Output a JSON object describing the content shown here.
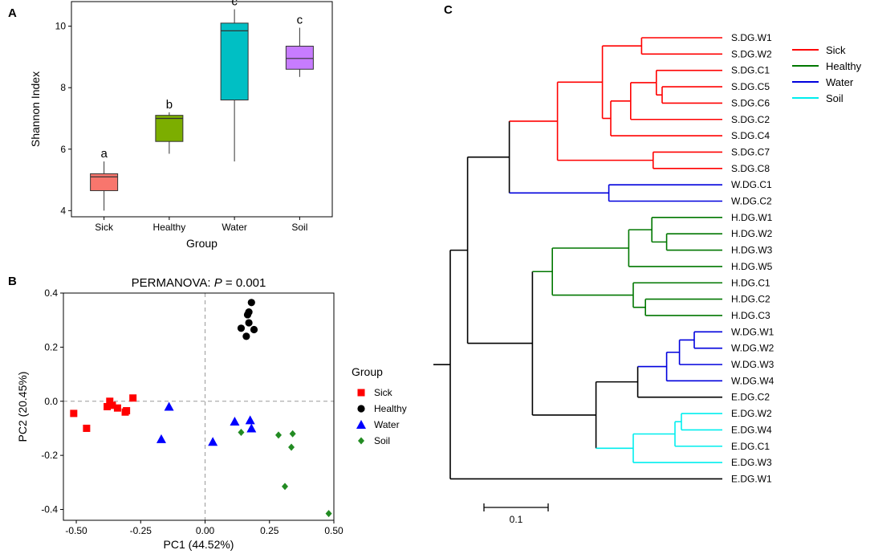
{
  "panels": {
    "a": {
      "letter": "A"
    },
    "b": {
      "letter": "B"
    },
    "c": {
      "letter": "C"
    }
  },
  "chart_data": [
    {
      "id": "A",
      "type": "boxplot",
      "title": "",
      "xlabel": "Group",
      "ylabel": "Shannon Index",
      "ylim": [
        3.8,
        10.8
      ],
      "yticks": [
        4,
        6,
        8,
        10
      ],
      "categories": [
        "Sick",
        "Healthy",
        "Water",
        "Soil"
      ],
      "boxes": [
        {
          "group": "Sick",
          "min": 4.0,
          "q1": 4.65,
          "median": 5.1,
          "q3": 5.2,
          "max": 5.6,
          "letter": "a",
          "color": "#f8766d"
        },
        {
          "group": "Healthy",
          "min": 5.85,
          "q1": 6.25,
          "median": 7.0,
          "q3": 7.1,
          "max": 7.2,
          "letter": "b",
          "color": "#7cae00"
        },
        {
          "group": "Water",
          "min": 5.6,
          "q1": 7.6,
          "median": 9.85,
          "q3": 10.1,
          "max": 10.55,
          "letter": "c",
          "color": "#00bfc4"
        },
        {
          "group": "Soil",
          "min": 8.35,
          "q1": 8.6,
          "median": 8.95,
          "q3": 9.35,
          "max": 9.95,
          "letter": "c",
          "color": "#c77cff"
        }
      ]
    },
    {
      "id": "B",
      "type": "scatter",
      "title_prefix": "PERMANOVA: ",
      "title_p": "P",
      "title_suffix": " = 0.001",
      "xlabel": "PC1 (44.52%)",
      "ylabel": "PC2 (20.45%)",
      "xlim": [
        -0.55,
        0.5
      ],
      "ylim": [
        -0.44,
        0.4
      ],
      "xticks": [
        -0.5,
        -0.25,
        0.0,
        0.25,
        0.5
      ],
      "xtick_labels": [
        "-0.50",
        "-0.25",
        "0.00",
        "0.25",
        "0.50"
      ],
      "yticks": [
        -0.4,
        -0.2,
        0.0,
        0.2,
        0.4
      ],
      "ytick_labels": [
        "-0.4",
        "-0.2",
        "0.0",
        "0.2",
        "0.4"
      ],
      "legend_title": "Group",
      "legend_position": "right",
      "series": [
        {
          "name": "Sick",
          "color": "#ff0000",
          "marker": "square",
          "x": [
            -0.51,
            -0.46,
            -0.38,
            -0.37,
            -0.36,
            -0.34,
            -0.31,
            -0.305,
            -0.28
          ],
          "y": [
            -0.045,
            -0.1,
            -0.02,
            0.0,
            -0.015,
            -0.025,
            -0.04,
            -0.035,
            0.012
          ]
        },
        {
          "name": "Healthy",
          "color": "#000000",
          "marker": "circle",
          "x": [
            0.14,
            0.16,
            0.165,
            0.17,
            0.17,
            0.18,
            0.19
          ],
          "y": [
            0.27,
            0.24,
            0.32,
            0.29,
            0.33,
            0.365,
            0.265
          ]
        },
        {
          "name": "Water",
          "color": "#0000ff",
          "marker": "triangle",
          "x": [
            -0.17,
            -0.14,
            0.03,
            0.115,
            0.175,
            0.18
          ],
          "y": [
            -0.14,
            -0.02,
            -0.15,
            -0.075,
            -0.07,
            -0.1
          ]
        },
        {
          "name": "Soil",
          "color": "#228b22",
          "marker": "diamond",
          "x": [
            0.14,
            0.285,
            0.31,
            0.335,
            0.34,
            0.48
          ],
          "y": [
            -0.115,
            -0.125,
            -0.315,
            -0.17,
            -0.12,
            -0.415
          ]
        }
      ]
    },
    {
      "id": "C",
      "type": "dendrogram",
      "scale_bar_label": "0.1",
      "legend_position": "top-right",
      "legend": [
        {
          "name": "Sick",
          "color": "#ff0000"
        },
        {
          "name": "Healthy",
          "color": "#007700"
        },
        {
          "name": "Water",
          "color": "#0000dd"
        },
        {
          "name": "Soil",
          "color": "#00eeee"
        }
      ],
      "leaves": [
        "S.DG.W1",
        "S.DG.W2",
        "S.DG.C1",
        "S.DG.C5",
        "S.DG.C6",
        "S.DG.C2",
        "S.DG.C4",
        "S.DG.C7",
        "S.DG.C8",
        "W.DG.C1",
        "W.DG.C2",
        "H.DG.W1",
        "H.DG.W2",
        "H.DG.W3",
        "H.DG.W5",
        "H.DG.C1",
        "H.DG.C2",
        "H.DG.C3",
        "W.DG.W1",
        "W.DG.W2",
        "W.DG.W3",
        "W.DG.W4",
        "E.DG.C2",
        "E.DG.W2",
        "E.DG.W4",
        "E.DG.C1",
        "E.DG.W3",
        "E.DG.W1"
      ],
      "tree": {
        "d": 0.0,
        "k": "black",
        "c": [
          {
            "d": 0.27,
            "k": "black",
            "c": [
              {
                "d": 0.92,
                "k": "black",
                "c": [
                  {
                    "d": 1.67,
                    "k": "red",
                    "c": [
                      {
                        "d": 2.37,
                        "k": "red",
                        "c": [
                          {
                            "d": 2.98,
                            "k": "red",
                            "c": [
                              {
                                "leaf": 0
                              },
                              {
                                "leaf": 1
                              }
                            ]
                          },
                          {
                            "d": 2.5,
                            "k": "red",
                            "c": [
                              {
                                "d": 2.81,
                                "k": "red",
                                "c": [
                                  {
                                    "d": 3.21,
                                    "k": "red",
                                    "c": [
                                      {
                                        "leaf": 2
                                      },
                                      {
                                        "d": 3.3,
                                        "k": "red",
                                        "c": [
                                          {
                                            "leaf": 3
                                          },
                                          {
                                            "leaf": 4
                                          }
                                        ]
                                      }
                                    ]
                                  },
                                  {
                                    "leaf": 5
                                  }
                                ]
                              },
                              {
                                "leaf": 6
                              }
                            ]
                          }
                        ]
                      },
                      {
                        "d": 3.16,
                        "k": "red",
                        "c": [
                          {
                            "leaf": 7
                          },
                          {
                            "leaf": 8
                          }
                        ]
                      }
                    ]
                  },
                  {
                    "d": 2.47,
                    "k": "blue",
                    "c": [
                      {
                        "leaf": 9
                      },
                      {
                        "leaf": 10
                      }
                    ]
                  }
                ]
              },
              {
                "d": 1.28,
                "k": "black",
                "c": [
                  {
                    "d": 1.59,
                    "k": "green",
                    "c": [
                      {
                        "d": 2.78,
                        "k": "green",
                        "c": [
                          {
                            "d": 3.14,
                            "k": "green",
                            "c": [
                              {
                                "leaf": 11
                              },
                              {
                                "d": 3.37,
                                "k": "green",
                                "c": [
                                  {
                                    "leaf": 12
                                  },
                                  {
                                    "leaf": 13
                                  }
                                ]
                              }
                            ]
                          },
                          {
                            "leaf": 14
                          }
                        ]
                      },
                      {
                        "d": 2.85,
                        "k": "green",
                        "c": [
                          {
                            "leaf": 15
                          },
                          {
                            "d": 3.04,
                            "k": "green",
                            "c": [
                              {
                                "leaf": 16
                              },
                              {
                                "leaf": 17
                              }
                            ]
                          }
                        ]
                      }
                    ]
                  },
                  {
                    "d": 2.27,
                    "k": "black",
                    "c": [
                      {
                        "d": 2.92,
                        "k": "black",
                        "c": [
                          {
                            "d": 3.37,
                            "k": "blue",
                            "c": [
                              {
                                "d": 3.57,
                                "k": "blue",
                                "c": [
                                  {
                                    "d": 3.8,
                                    "k": "blue",
                                    "c": [
                                      {
                                        "leaf": 18
                                      },
                                      {
                                        "leaf": 19
                                      }
                                    ]
                                  },
                                  {
                                    "leaf": 20
                                  }
                                ]
                              },
                              {
                                "leaf": 21
                              }
                            ]
                          },
                          {
                            "leaf": 22
                          }
                        ]
                      },
                      {
                        "d": 2.85,
                        "k": "cyan",
                        "c": [
                          {
                            "d": 3.5,
                            "k": "cyan",
                            "c": [
                              {
                                "d": 3.6,
                                "k": "cyan",
                                "c": [
                                  {
                                    "leaf": 23
                                  },
                                  {
                                    "leaf": 24
                                  }
                                ]
                              },
                              {
                                "leaf": 25
                              }
                            ]
                          },
                          {
                            "leaf": 26
                          }
                        ]
                      }
                    ]
                  }
                ]
              }
            ]
          },
          {
            "leaf": 27
          }
        ]
      }
    }
  ]
}
